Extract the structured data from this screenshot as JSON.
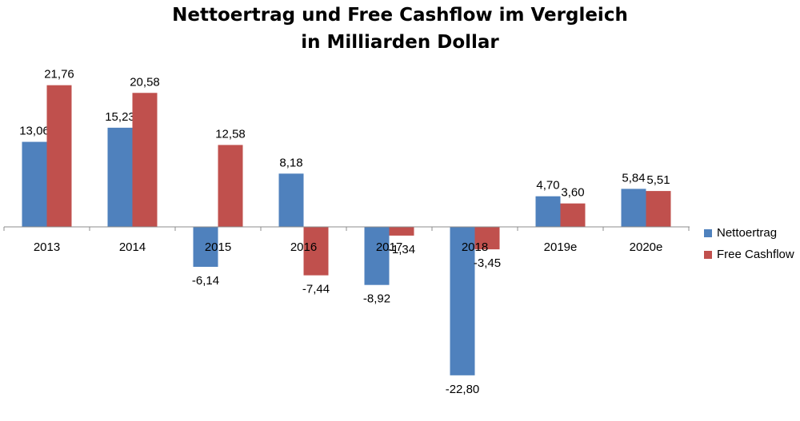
{
  "chart_data": {
    "type": "bar",
    "title_line1": "Nettoertrag und Free Cashflow im Vergleich",
    "title_line2": "in Milliarden Dollar",
    "categories": [
      "2013",
      "2014",
      "2015",
      "2016",
      "2017",
      "2018",
      "2019e",
      "2020e"
    ],
    "series": [
      {
        "name": "Nettoertrag",
        "color": "#4F81BD",
        "values": [
          13.06,
          15.23,
          -6.14,
          8.18,
          -8.92,
          -22.8,
          4.7,
          5.84
        ],
        "labels": [
          "13,06",
          "15,23",
          "-6,14",
          "8,18",
          "-8,92",
          "-22,80",
          "4,70",
          "5,84"
        ]
      },
      {
        "name": "Free Cashflow",
        "color": "#C0504D",
        "values": [
          21.76,
          20.58,
          12.58,
          -7.44,
          -1.34,
          -3.45,
          3.6,
          5.51
        ],
        "labels": [
          "21,76",
          "20,58",
          "12,58",
          "-7,44",
          "-1,34",
          "-3,45",
          "3,60",
          "5,51"
        ]
      }
    ],
    "legend_position": "right",
    "grid": false
  }
}
